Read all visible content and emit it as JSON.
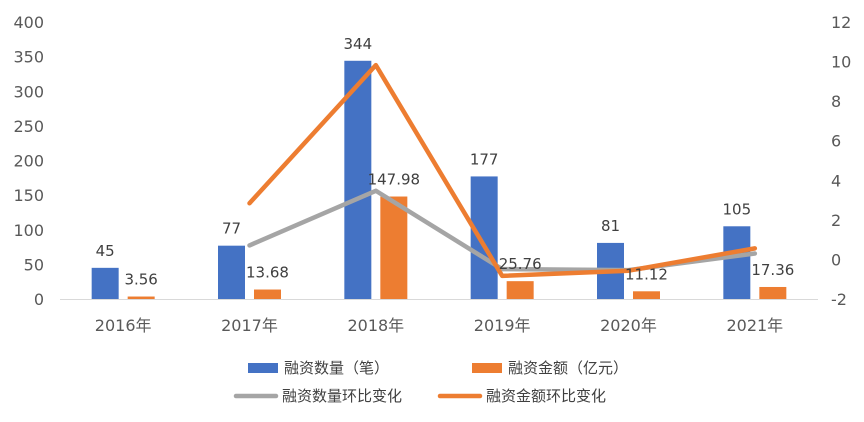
{
  "colors": {
    "blue": "#4472C4",
    "orange": "#ED7D31",
    "gray": "#A5A5A5",
    "axis_text": "#595959",
    "axis_line": "#D9D9D9"
  },
  "chart_data": {
    "type": "bar",
    "categories": [
      "2016年",
      "2017年",
      "2018年",
      "2019年",
      "2020年",
      "2021年"
    ],
    "left_axis": {
      "ylim": [
        0,
        400
      ],
      "ticks": [
        0,
        50,
        100,
        150,
        200,
        250,
        300,
        350,
        400
      ]
    },
    "right_axis": {
      "ylim": [
        -2,
        12
      ],
      "ticks": [
        -2,
        0,
        2,
        4,
        6,
        8,
        10,
        12
      ]
    },
    "series": [
      {
        "name": "融资数量（笔）",
        "type": "bar",
        "axis": "left",
        "color": "#4472C4",
        "values": [
          45,
          77,
          344,
          177,
          81,
          105
        ],
        "labels": [
          "45",
          "77",
          "344",
          "177",
          "81",
          "105"
        ]
      },
      {
        "name": "融资金额（亿元）",
        "type": "bar",
        "axis": "left",
        "color": "#ED7D31",
        "values": [
          3.56,
          13.68,
          147.98,
          25.76,
          11.12,
          17.36
        ],
        "labels": [
          "3.56",
          "13.68",
          "147.98",
          "25.76",
          "11.12",
          "17.36"
        ]
      },
      {
        "name": "融资数量环比变化",
        "type": "line",
        "axis": "right",
        "color": "#A5A5A5",
        "values": [
          null,
          0.71,
          3.47,
          -0.49,
          -0.54,
          0.3
        ]
      },
      {
        "name": "融资金额环比变化",
        "type": "line",
        "axis": "right",
        "color": "#ED7D31",
        "values": [
          null,
          2.84,
          9.82,
          -0.83,
          -0.57,
          0.56
        ]
      }
    ],
    "legend_position": "bottom",
    "grid": false
  }
}
